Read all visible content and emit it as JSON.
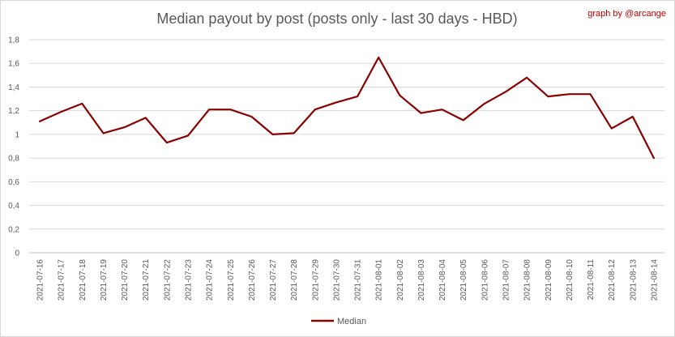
{
  "chart_data": {
    "type": "line",
    "title": "Median payout by post (posts only - last 30 days - HBD)",
    "credit": "graph by @arcange",
    "xlabel": "",
    "ylabel": "",
    "ylim": [
      0,
      1.8
    ],
    "ytick_values": [
      0,
      0.2,
      0.4,
      0.6,
      0.8,
      1,
      1.2,
      1.4,
      1.6,
      1.8
    ],
    "ytick_labels": [
      "0",
      "0,2",
      "0,4",
      "0,6",
      "0,8",
      "1",
      "1,2",
      "1,4",
      "1,6",
      "1,8"
    ],
    "grid": true,
    "legend_position": "bottom",
    "categories": [
      "2021-07-16",
      "2021-07-17",
      "2021-07-18",
      "2021-07-19",
      "2021-07-20",
      "2021-07-21",
      "2021-07-22",
      "2021-07-23",
      "2021-07-24",
      "2021-07-25",
      "2021-07-26",
      "2021-07-27",
      "2021-07-28",
      "2021-07-29",
      "2021-07-30",
      "2021-07-31",
      "2021-08-01",
      "2021-08-02",
      "2021-08-03",
      "2021-08-04",
      "2021-08-05",
      "2021-08-06",
      "2021-08-07",
      "2021-08-08",
      "2021-08-09",
      "2021-08-10",
      "2021-08-11",
      "2021-08-12",
      "2021-08-13",
      "2021-08-14"
    ],
    "series": [
      {
        "name": "Median",
        "color": "#8b0000",
        "values": [
          1.11,
          1.19,
          1.26,
          1.01,
          1.06,
          1.14,
          0.93,
          0.99,
          1.21,
          1.21,
          1.15,
          1.0,
          1.01,
          1.21,
          1.27,
          1.32,
          1.65,
          1.33,
          1.18,
          1.21,
          1.12,
          1.26,
          1.36,
          1.48,
          1.32,
          1.34,
          1.34,
          1.05,
          1.15,
          0.8
        ]
      }
    ]
  }
}
